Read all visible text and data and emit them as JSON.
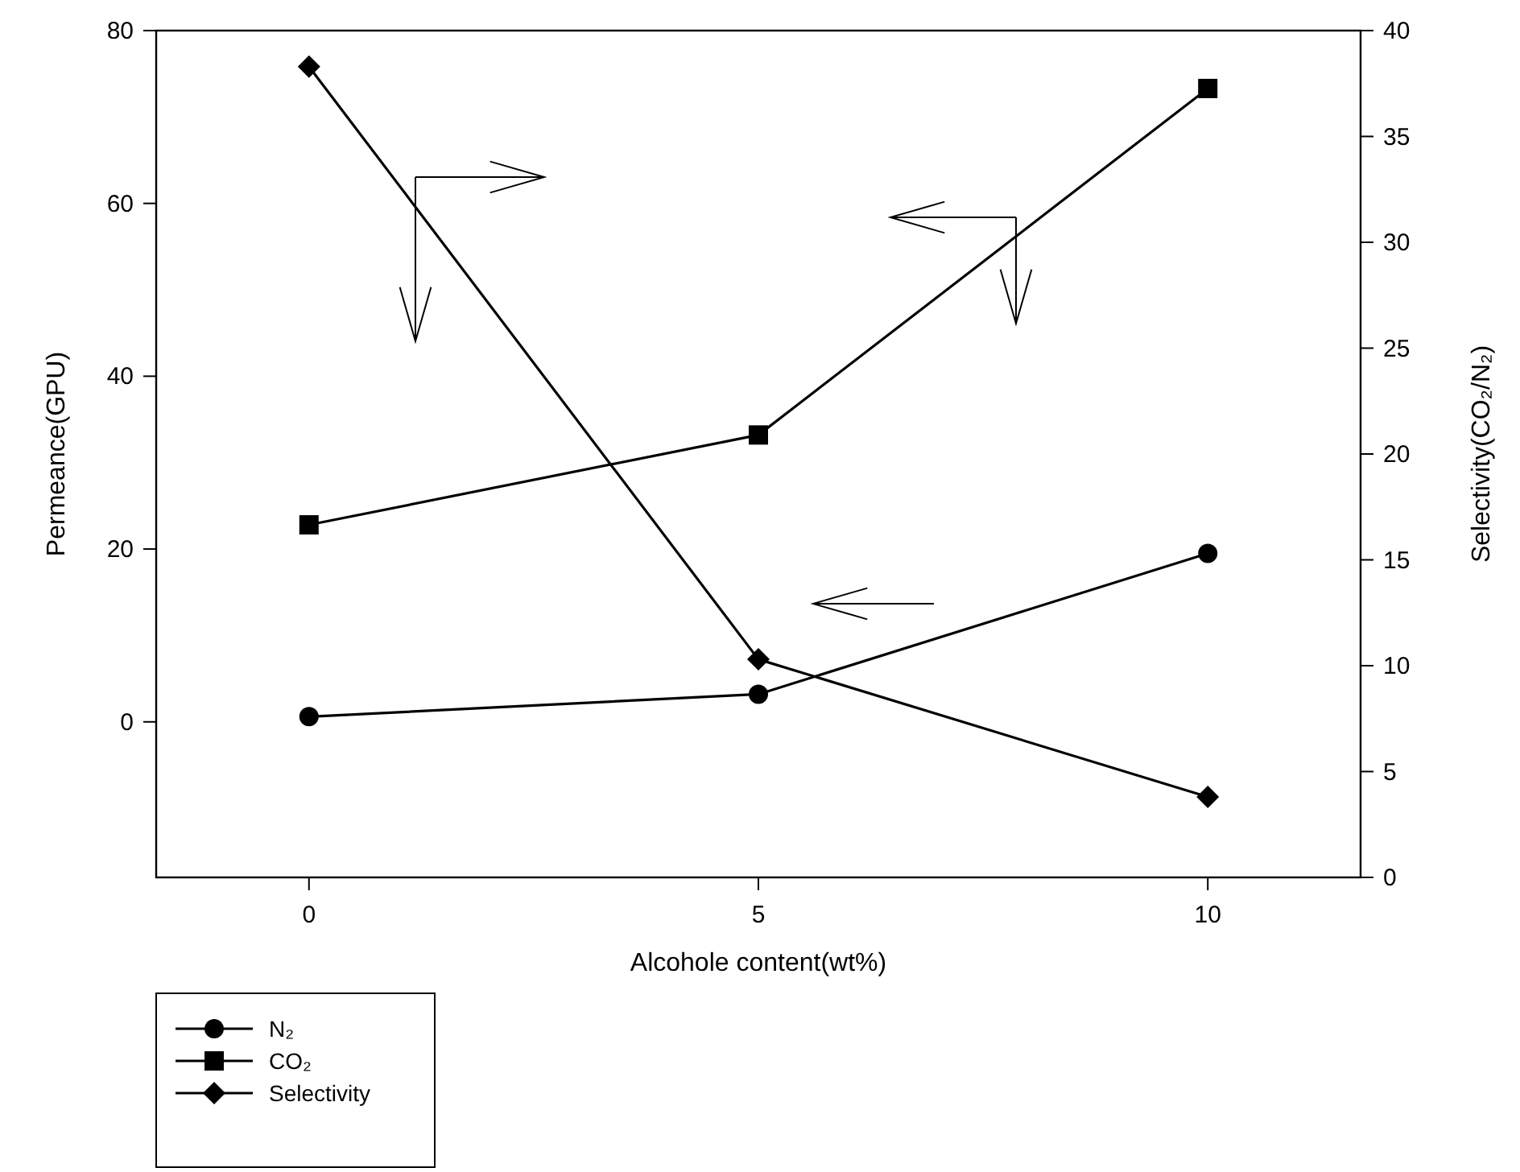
{
  "chart_data": {
    "type": "line",
    "xlabel": "Alcohole content(wt%)",
    "ylabel": "Permeance(GPU)",
    "y2label": "Selectivity(CO₂/N₂)",
    "x": [
      0,
      5,
      10
    ],
    "xlim": [
      -1.7,
      11.7
    ],
    "xticks": [
      0,
      5,
      10
    ],
    "ylim": [
      -18,
      80
    ],
    "yticks": [
      0,
      20,
      40,
      60,
      80
    ],
    "y2lim": [
      0,
      40
    ],
    "y2ticks": [
      0,
      5,
      10,
      15,
      20,
      25,
      30,
      35,
      40
    ],
    "legend": "bottom left",
    "grid": false,
    "line_style": "solid",
    "series": [
      {
        "name": "N₂",
        "color": "#000000",
        "marker": "circle",
        "values": [
          0.6,
          3.2,
          19.5
        ]
      },
      {
        "name": "CO₂",
        "color": "#000000",
        "marker": "square",
        "values": [
          22.8,
          33.2,
          73.3
        ]
      },
      {
        "name": "Selectivity",
        "color": "#000000",
        "marker": "diamond",
        "axis": "y2",
        "values": [
          38.3,
          10.3,
          3.8
        ]
      }
    ]
  }
}
